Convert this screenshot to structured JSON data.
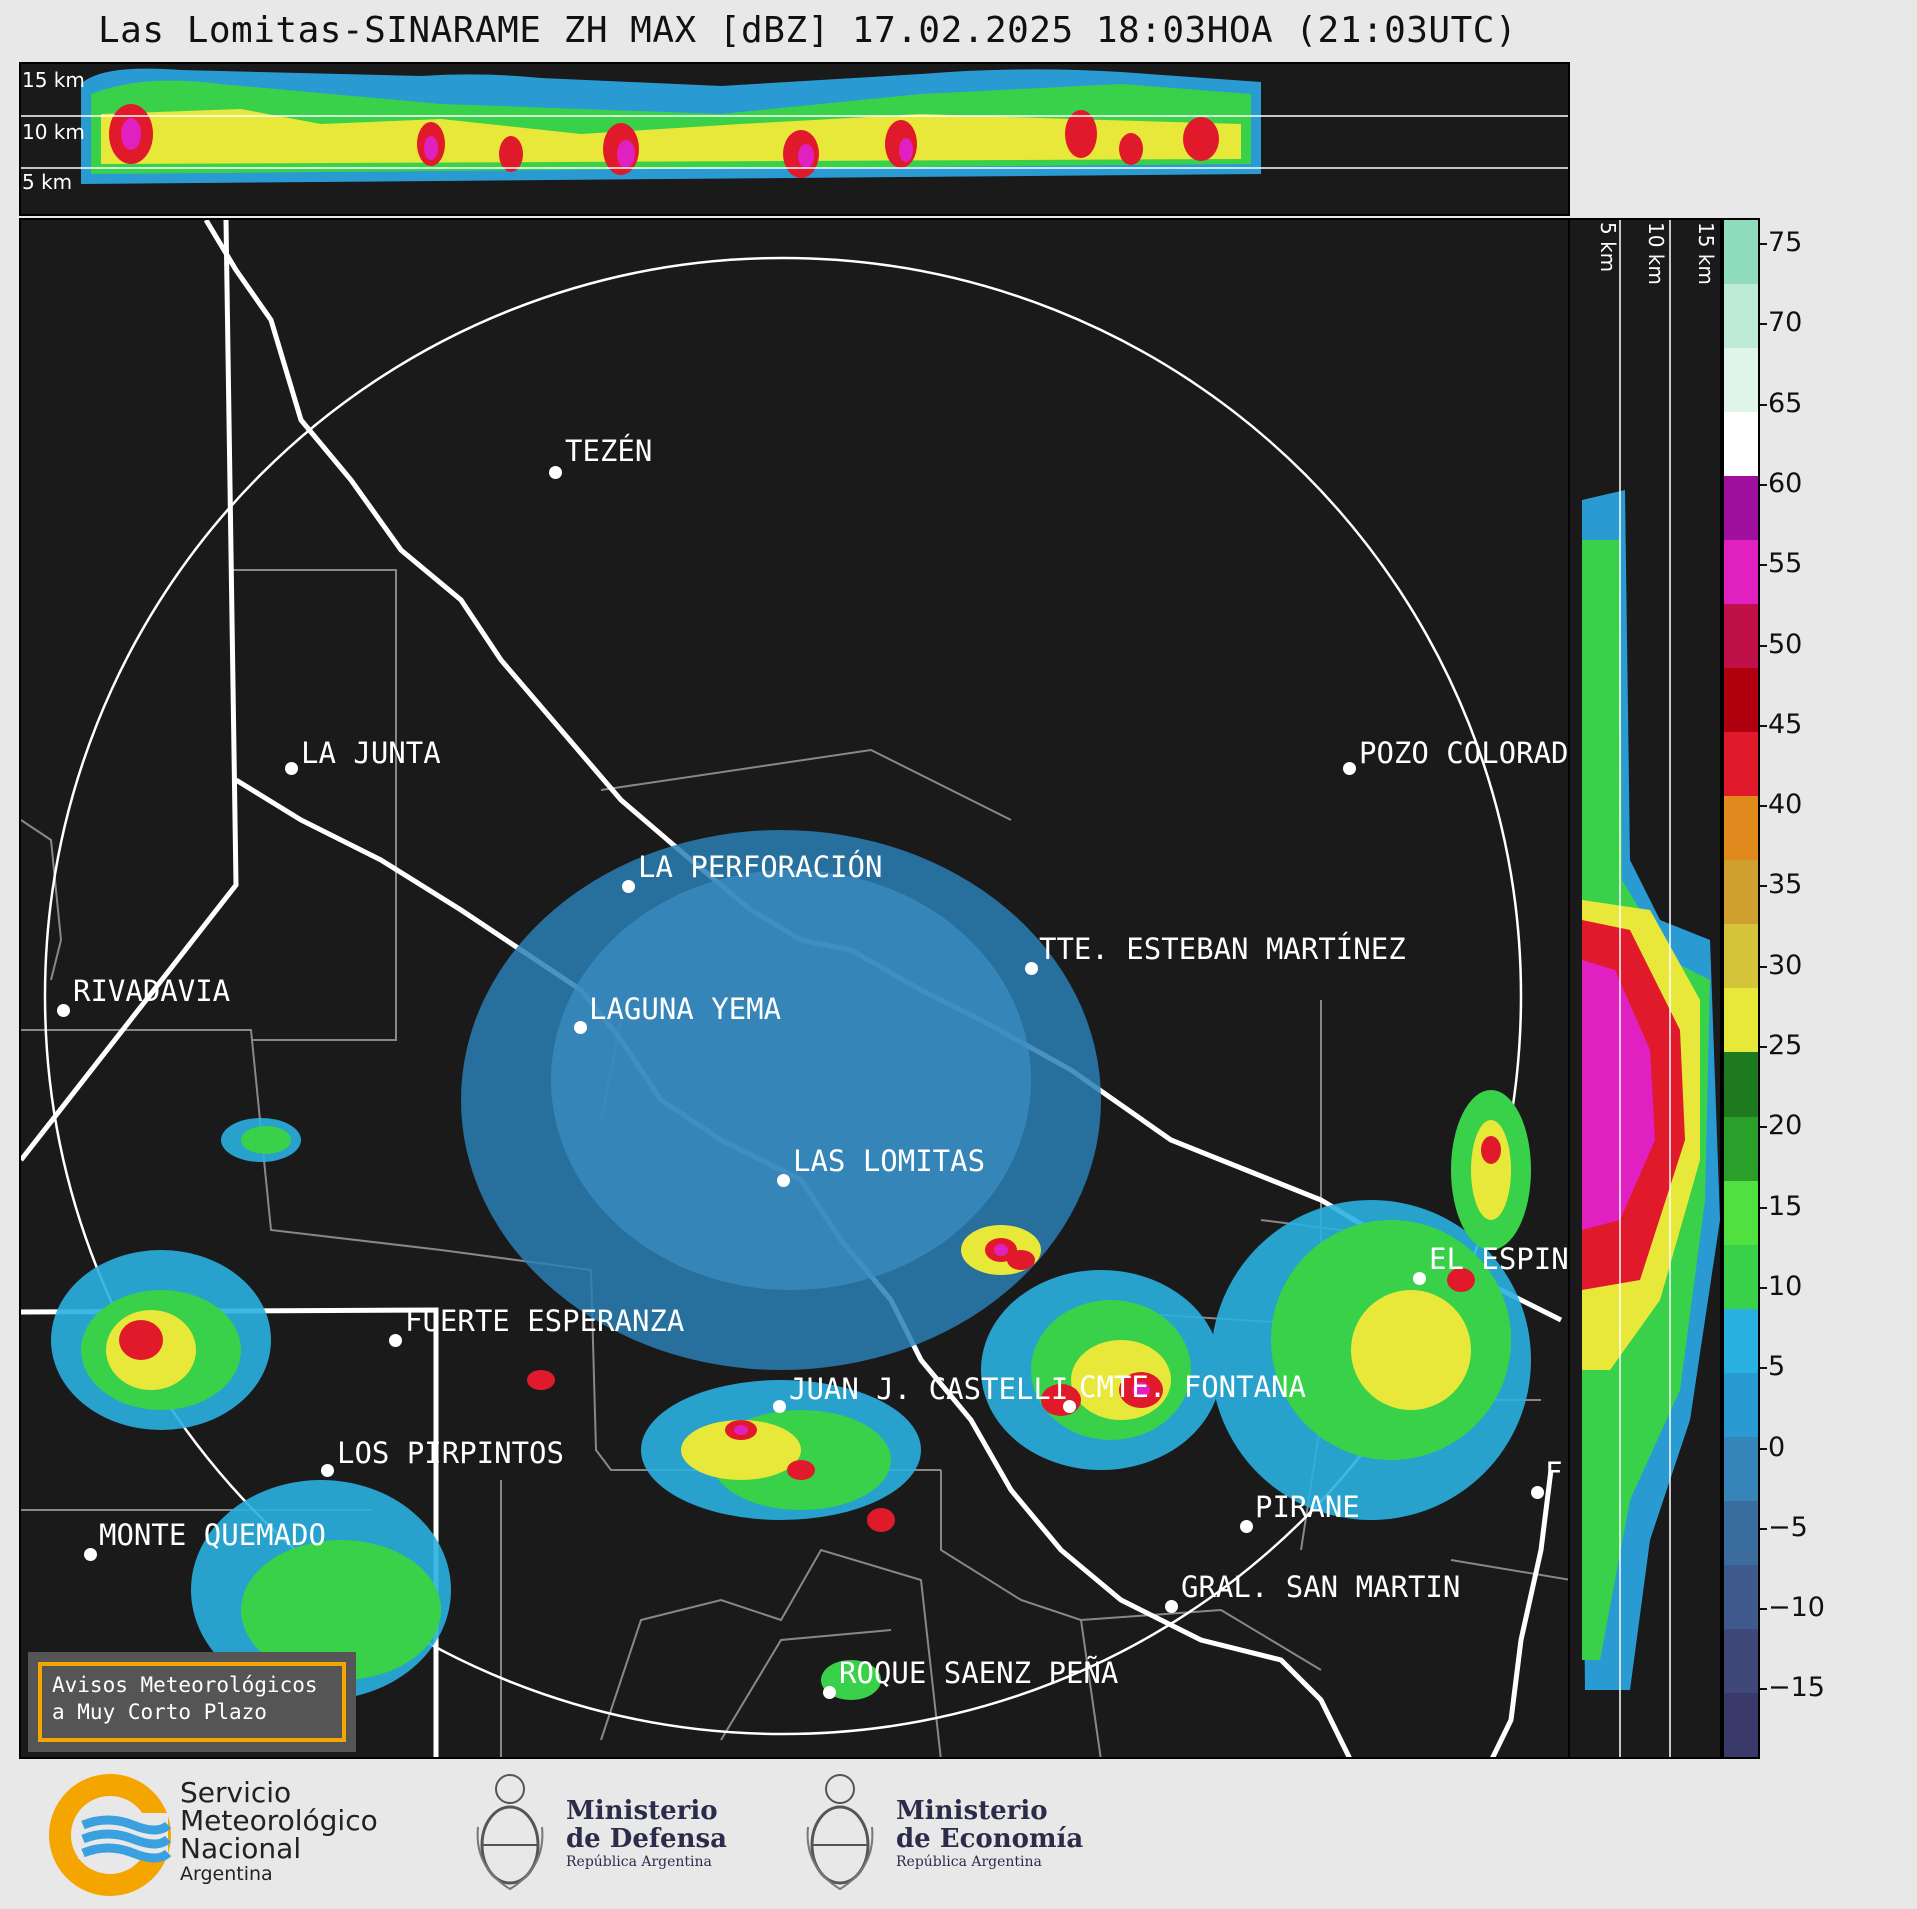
{
  "title": "Las Lomitas-SINARAME ZH MAX [dBZ] 17.02.2025 18:03HOA (21:03UTC)",
  "top_strip": {
    "labels": [
      "15 km",
      "10 km",
      "5 km"
    ]
  },
  "side_strip": {
    "labels": [
      "5 km",
      "10 km",
      "15 km"
    ]
  },
  "colorbar": {
    "ticks": [
      "75",
      "70",
      "65",
      "60",
      "55",
      "50",
      "45",
      "40",
      "35",
      "30",
      "25",
      "20",
      "15",
      "10",
      "5",
      "0",
      "−5",
      "−10",
      "−15"
    ],
    "colors": [
      "#3a3a6a",
      "#40487a",
      "#3f5a8c",
      "#3a6c9e",
      "#3684b8",
      "#2a9bd2",
      "#2ab0e0",
      "#3ad14a",
      "#50e040",
      "#2aa02a",
      "#1e7a1e",
      "#e8e83a",
      "#d4c43a",
      "#cfa030",
      "#e08a1e",
      "#e01a2a",
      "#b00010",
      "#c0104a",
      "#e020c0",
      "#a010a0",
      "#ffffff",
      "#dff5ea",
      "#bdebd6",
      "#8fdcbd"
    ]
  },
  "cities": [
    {
      "name": "TEZÉN"
    },
    {
      "name": "LA JUNTA"
    },
    {
      "name": "POZO COLORAD"
    },
    {
      "name": "LA PERFORACIÓN"
    },
    {
      "name": "TTE. ESTEBAN MARTÍNEZ"
    },
    {
      "name": "RIVADAVIA"
    },
    {
      "name": "LAGUNA YEMA"
    },
    {
      "name": "LAS LOMITAS"
    },
    {
      "name": "EL ESPIN"
    },
    {
      "name": "FUERTE ESPERANZA"
    },
    {
      "name": "CMTE. FONTANA"
    },
    {
      "name": "PIRANE"
    },
    {
      "name": "MONTE QUEMADO"
    },
    {
      "name": "JUAN J. CASTELLI"
    },
    {
      "name": "LOS PIRPINTOS"
    },
    {
      "name": "GRAL. SAN MARTIN"
    },
    {
      "name": "ROQUE SAENZ PEÑA"
    },
    {
      "name": "F"
    }
  ],
  "avisos": {
    "line1": "Avisos Meteorológicos",
    "line2": "a Muy Corto Plazo"
  },
  "logos": {
    "smn": {
      "line1": "Servicio",
      "line2": "Meteorológico",
      "line3": "Nacional",
      "line4": "Argentina"
    },
    "defensa": {
      "line1": "Ministerio",
      "line2": "de Defensa",
      "line3": "República Argentina"
    },
    "economia": {
      "line1": "Ministerio",
      "line2": "de Economía",
      "line3": "República Argentina"
    }
  }
}
